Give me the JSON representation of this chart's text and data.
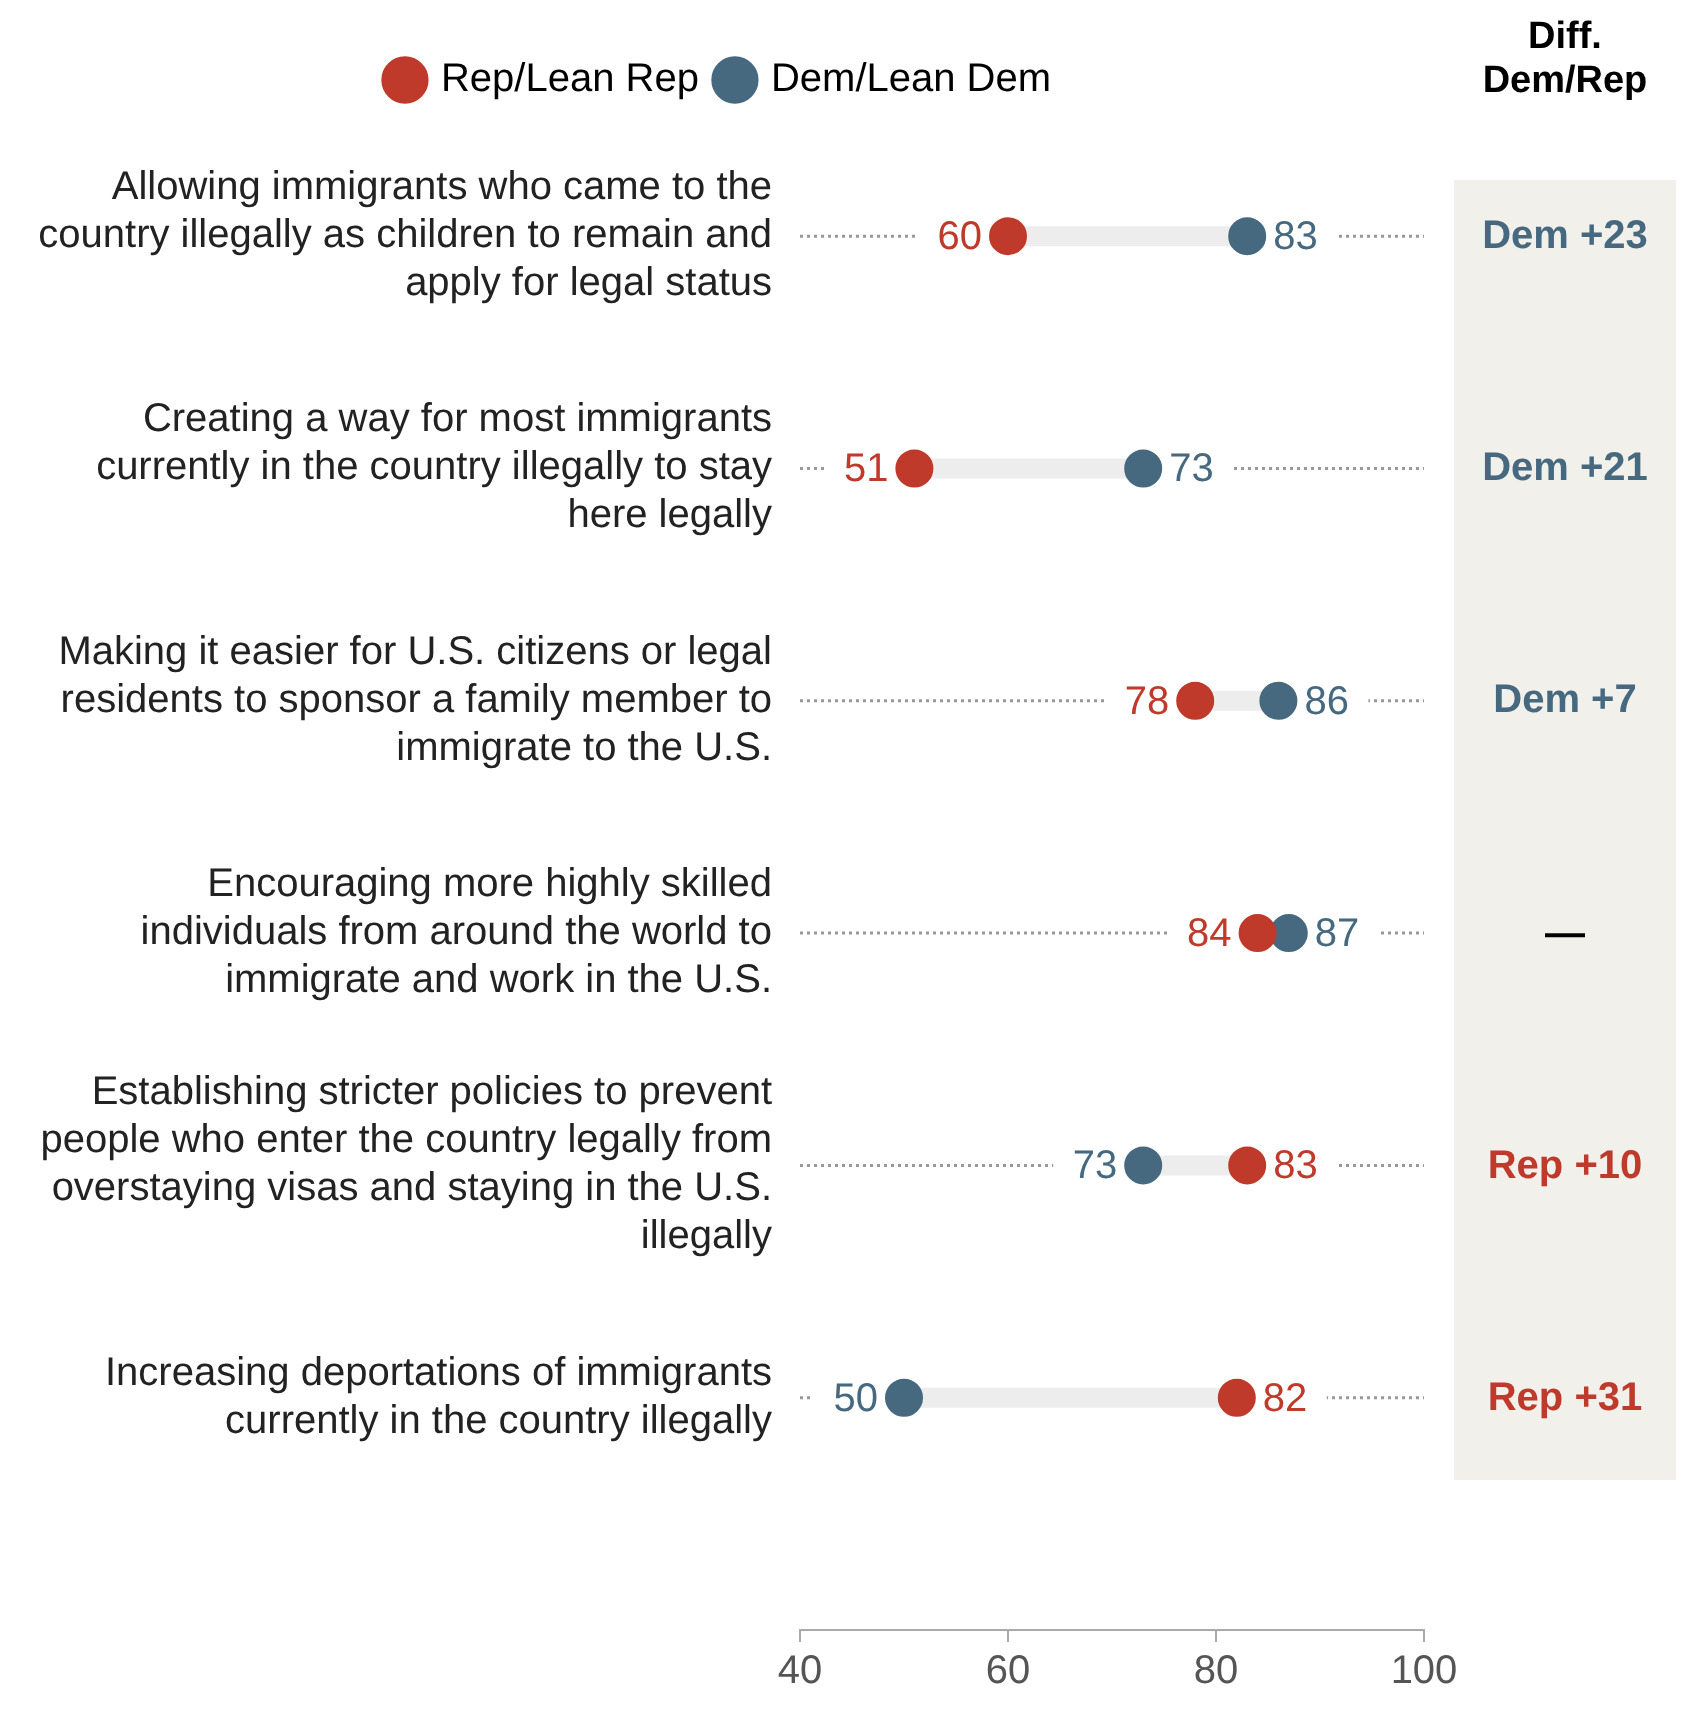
{
  "chart_data": {
    "type": "scatter",
    "orientation": "horizontal",
    "categories": [
      "Allowing immigrants who came to the country illegally as children to remain and apply for legal status",
      "Creating a way for most immigrants currently in the country illegally to stay here legally",
      "Making it easier for U.S. citizens or legal residents to sponsor a family member to immigrate to the U.S.",
      "Encouraging more highly skilled individuals from around the world to immigrate and work in the U.S.",
      "Establishing stricter policies to prevent people who enter the country legally from overstaying visas and staying in the U.S. illegally",
      "Increasing deportations of immigrants currently in the country illegally"
    ],
    "series": [
      {
        "name": "Rep/Lean Rep",
        "color": "#bf3a2b",
        "values": [
          60,
          51,
          78,
          84,
          83,
          82
        ]
      },
      {
        "name": "Dem/Lean Dem",
        "color": "#46697f",
        "values": [
          83,
          73,
          86,
          87,
          73,
          50
        ]
      }
    ],
    "xlim": [
      40,
      100
    ],
    "xticks": [
      40,
      60,
      80,
      100
    ],
    "grid": false,
    "legend": "top",
    "marker": "circle",
    "data_labels": true,
    "annotations": [
      "Diff. Dem/Rep",
      "Dem +23",
      "Dem +21",
      "Dem +7",
      "—",
      "Rep +10",
      "Rep +31"
    ]
  }
}
